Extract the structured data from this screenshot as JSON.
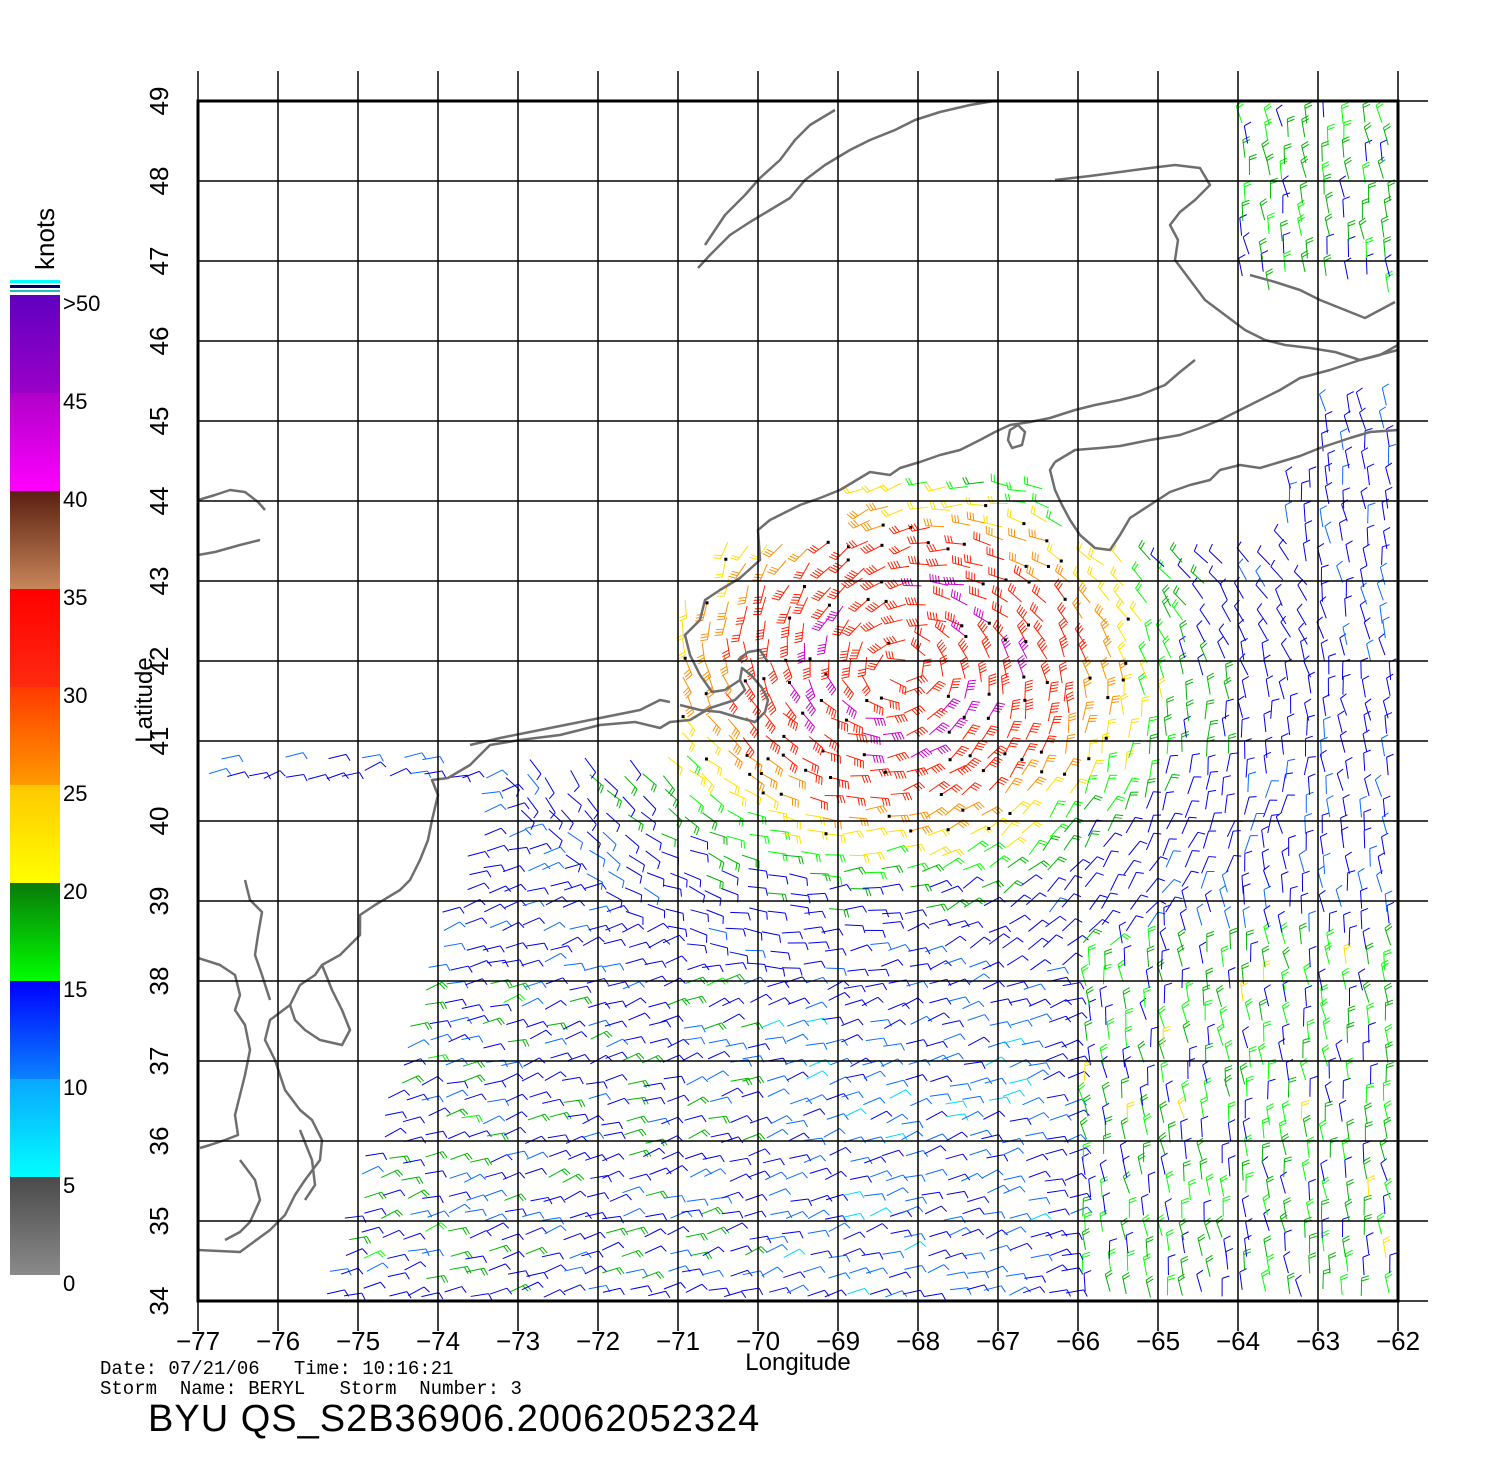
{
  "plot": {
    "xlabel": "Longitude",
    "ylabel": "Latitude",
    "lon_ticks": [
      "−77",
      "−76",
      "−75",
      "−74",
      "−73",
      "−72",
      "−71",
      "−70",
      "−69",
      "−68",
      "−67",
      "−66",
      "−65",
      "−64",
      "−63",
      "−62"
    ],
    "lat_ticks": [
      "34",
      "35",
      "36",
      "37",
      "38",
      "39",
      "40",
      "41",
      "42",
      "43",
      "44",
      "45",
      "46",
      "47",
      "48",
      "49"
    ],
    "lon_range": [
      -77,
      -62
    ],
    "lat_range": [
      34,
      49
    ],
    "grid": true
  },
  "colorbar": {
    "units": "knots",
    "labels": [
      ">50",
      "45",
      "40",
      "35",
      "30",
      "25",
      "20",
      "15",
      "10",
      "5",
      "0"
    ],
    "stops": [
      {
        "from": 0,
        "to": 5,
        "top": "#4a4a4a",
        "bottom": "#8a8a8a"
      },
      {
        "from": 5,
        "to": 10,
        "top": "#0aa6ff",
        "bottom": "#00ffff"
      },
      {
        "from": 10,
        "to": 15,
        "top": "#0000ff",
        "bottom": "#0a82ff"
      },
      {
        "from": 15,
        "to": 20,
        "top": "#0a7a0a",
        "bottom": "#00ff00"
      },
      {
        "from": 20,
        "to": 25,
        "top": "#ffc800",
        "bottom": "#ffff00"
      },
      {
        "from": 25,
        "to": 30,
        "top": "#ff3a00",
        "bottom": "#ff9a00"
      },
      {
        "from": 30,
        "to": 35,
        "top": "#ff0000",
        "bottom": "#ff2a10"
      },
      {
        "from": 35,
        "to": 40,
        "top": "#5a1f10",
        "bottom": "#c8865a"
      },
      {
        "from": 40,
        "to": 45,
        "top": "#b000c8",
        "bottom": "#ff00ff"
      },
      {
        "from": 45,
        "to": 50,
        "top": "#6000c0",
        "bottom": "#9a00c8"
      }
    ]
  },
  "footer": {
    "date_label": "Date:",
    "date": "07/21/06",
    "time_label": "Time:",
    "time": "10:16:21",
    "storm_name_label": "Storm  Name:",
    "storm_name": "BERYL",
    "storm_number_label": "Storm  Number:",
    "storm_number": "3",
    "product": "BYU  QS_S2B36906.20062052324"
  },
  "wind_field": {
    "storm_center": {
      "lon": -68.2,
      "lat": 41.9
    },
    "colors_by_speed": [
      "#555555",
      "#00d8ff",
      "#0a6cff",
      "#0000e6",
      "#00b400",
      "#00ff00",
      "#ffe000",
      "#ff9000",
      "#ff2000",
      "#cc00cc"
    ]
  }
}
